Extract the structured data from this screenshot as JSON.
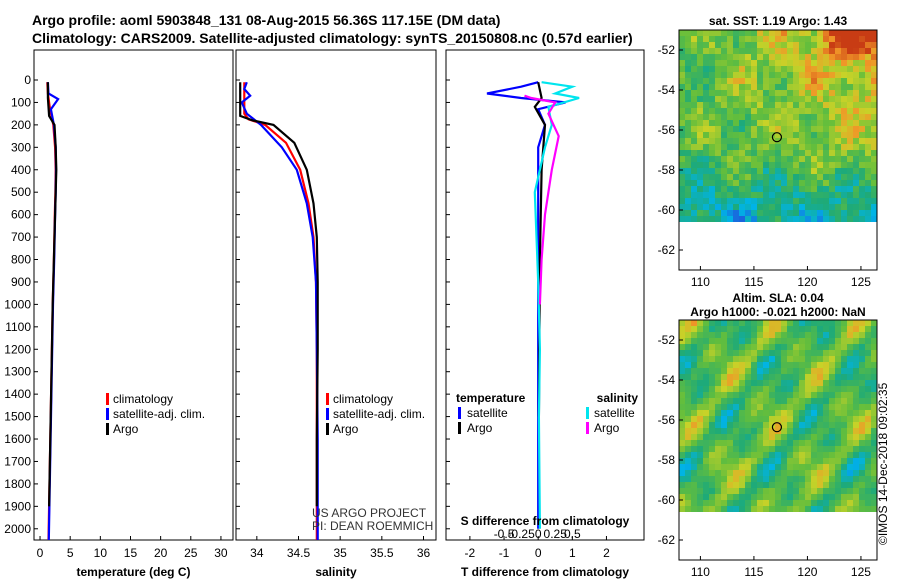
{
  "header": {
    "line1": "Argo profile: aoml 5903848_131 08-Aug-2015 56.36S 117.15E (DM data)",
    "line2": "Climatology: CARS2009. Satellite-adjusted climatology: synTS_20150808.nc (0.57d earlier)"
  },
  "colors": {
    "climatology": "#ff0000",
    "satellite": "#0000ff",
    "argo": "#000000",
    "sal_satellite": "#00e5ee",
    "sal_argo": "#ff00ff"
  },
  "chart_data": [
    {
      "type": "line",
      "name": "temperature",
      "xlabel": "temperature (deg C)",
      "ylabel": "",
      "xlim": [
        -1,
        32
      ],
      "ylim": [
        2050,
        0
      ],
      "xticks": [
        0,
        5,
        10,
        15,
        20,
        25,
        30
      ],
      "yticks": [
        0,
        100,
        200,
        300,
        400,
        500,
        600,
        700,
        800,
        900,
        1000,
        1100,
        1200,
        1300,
        1400,
        1500,
        1600,
        1700,
        1800,
        1900,
        2000
      ],
      "legend": [
        "climatology",
        "satellite-adj. clim.",
        "Argo"
      ],
      "series": [
        {
          "name": "climatology",
          "color": "#ff0000",
          "points": [
            [
              1.2,
              10
            ],
            [
              1.3,
              60
            ],
            [
              1.6,
              120
            ],
            [
              2.2,
              200
            ],
            [
              2.5,
              300
            ],
            [
              2.6,
              400
            ],
            [
              2.55,
              500
            ],
            [
              2.45,
              600
            ],
            [
              2.3,
              800
            ],
            [
              2.1,
              1000
            ],
            [
              1.9,
              1300
            ],
            [
              1.7,
              1600
            ],
            [
              1.5,
              1900
            ],
            [
              1.4,
              2050
            ]
          ]
        },
        {
          "name": "satellite-adj. clim.",
          "color": "#0000ff",
          "points": [
            [
              1.3,
              10
            ],
            [
              1.4,
              60
            ],
            [
              3.0,
              85
            ],
            [
              1.8,
              130
            ],
            [
              2.3,
              200
            ],
            [
              2.6,
              300
            ],
            [
              2.65,
              400
            ],
            [
              2.6,
              500
            ],
            [
              2.5,
              600
            ],
            [
              2.35,
              800
            ],
            [
              2.15,
              1000
            ],
            [
              1.95,
              1300
            ],
            [
              1.75,
              1600
            ],
            [
              1.55,
              1900
            ],
            [
              1.45,
              2050
            ]
          ]
        },
        {
          "name": "Argo",
          "color": "#000000",
          "points": [
            [
              1.3,
              10
            ],
            [
              1.3,
              80
            ],
            [
              1.5,
              160
            ],
            [
              2.4,
              200
            ],
            [
              2.6,
              300
            ],
            [
              2.7,
              400
            ],
            [
              2.6,
              500
            ],
            [
              2.5,
              600
            ],
            [
              2.3,
              800
            ],
            [
              2.1,
              1000
            ],
            [
              1.9,
              1300
            ],
            [
              1.7,
              1600
            ],
            [
              1.5,
              1900
            ]
          ]
        }
      ]
    },
    {
      "type": "line",
      "name": "salinity",
      "xlabel": "salinity",
      "xlim": [
        33.75,
        36.15
      ],
      "ylim": [
        2050,
        0
      ],
      "xticks": [
        34,
        34.5,
        35,
        35.5,
        36
      ],
      "legend": [
        "climatology",
        "satellite-adj. clim.",
        "Argo"
      ],
      "series": [
        {
          "name": "climatology",
          "color": "#ff0000",
          "points": [
            [
              33.85,
              10
            ],
            [
              33.85,
              150
            ],
            [
              33.9,
              175
            ],
            [
              34.1,
              200
            ],
            [
              34.35,
              280
            ],
            [
              34.52,
              400
            ],
            [
              34.62,
              550
            ],
            [
              34.68,
              700
            ],
            [
              34.71,
              900
            ],
            [
              34.72,
              1200
            ],
            [
              34.72,
              1600
            ],
            [
              34.72,
              2050
            ]
          ]
        },
        {
          "name": "satellite-adj. clim.",
          "color": "#0000ff",
          "points": [
            [
              33.88,
              10
            ],
            [
              33.85,
              40
            ],
            [
              33.92,
              70
            ],
            [
              33.82,
              100
            ],
            [
              33.88,
              150
            ],
            [
              34.05,
              200
            ],
            [
              34.3,
              300
            ],
            [
              34.48,
              400
            ],
            [
              34.6,
              550
            ],
            [
              34.67,
              700
            ],
            [
              34.71,
              900
            ],
            [
              34.72,
              1200
            ],
            [
              34.73,
              1600
            ],
            [
              34.73,
              2050
            ]
          ]
        },
        {
          "name": "Argo",
          "color": "#000000",
          "points": [
            [
              33.8,
              10
            ],
            [
              33.8,
              160
            ],
            [
              33.95,
              180
            ],
            [
              34.2,
              200
            ],
            [
              34.45,
              280
            ],
            [
              34.6,
              400
            ],
            [
              34.68,
              550
            ],
            [
              34.72,
              700
            ],
            [
              34.73,
              900
            ],
            [
              34.73,
              1200
            ],
            [
              34.72,
              1600
            ],
            [
              34.72,
              1900
            ]
          ]
        }
      ],
      "annotation": [
        "US ARGO PROJECT",
        "PI: DEAN ROEMMICH"
      ]
    },
    {
      "type": "line",
      "name": "differences",
      "xlabel": "T difference from climatology",
      "xlabel_top": "S difference from climatology",
      "xlim": [
        -2.7,
        3.1
      ],
      "ylim": [
        2050,
        0
      ],
      "xticks": [
        -2,
        -1,
        0,
        1,
        2
      ],
      "xticks_top": [
        -0.5,
        -0.25,
        0,
        0.25,
        0.5
      ],
      "legend_left_title": "temperature",
      "legend_right_title": "salinity",
      "legend": [
        "satellite",
        "Argo"
      ],
      "series": [
        {
          "name": "T satellite",
          "color": "#0000ff",
          "points": [
            [
              0,
              10
            ],
            [
              -0.5,
              30
            ],
            [
              -1.5,
              60
            ],
            [
              -0.5,
              80
            ],
            [
              0.8,
              100
            ],
            [
              0,
              130
            ],
            [
              0.2,
              200
            ],
            [
              0,
              300
            ],
            [
              0,
              1000
            ],
            [
              0,
              1500
            ],
            [
              0,
              2000
            ]
          ]
        },
        {
          "name": "T Argo",
          "color": "#000000",
          "points": [
            [
              0,
              10
            ],
            [
              0.1,
              80
            ],
            [
              -0.1,
              120
            ],
            [
              0.2,
              200
            ],
            [
              0.1,
              400
            ],
            [
              0.05,
              800
            ],
            [
              0.02,
              1500
            ]
          ]
        },
        {
          "name": "S satellite",
          "color": "#00e5ee",
          "points": [
            [
              0.1,
              10
            ],
            [
              1.0,
              30
            ],
            [
              0.5,
              60
            ],
            [
              1.2,
              80
            ],
            [
              0.3,
              120
            ],
            [
              0.4,
              200
            ],
            [
              0.2,
              300
            ],
            [
              -0.1,
              500
            ],
            [
              0,
              900
            ],
            [
              0.05,
              1200
            ],
            [
              0.02,
              1500
            ],
            [
              0.05,
              2000
            ]
          ]
        },
        {
          "name": "S Argo",
          "color": "#ff00ff",
          "points": [
            [
              -0.4,
              70
            ],
            [
              -0.2,
              80
            ],
            [
              0.5,
              100
            ],
            [
              0.3,
              150
            ],
            [
              0.6,
              250
            ],
            [
              0.4,
              400
            ],
            [
              0.2,
              600
            ],
            [
              0.1,
              800
            ],
            [
              0.05,
              1000
            ]
          ]
        }
      ]
    }
  ],
  "maps": [
    {
      "title1": "sat. SST: 1.19 Argo: 1.43",
      "title2": "",
      "xticks": [
        110,
        115,
        120,
        125
      ],
      "yticks": [
        -52,
        -54,
        -56,
        -58,
        -60,
        -62
      ]
    },
    {
      "title1": "Altim. SLA: 0.04",
      "title2": "Argo h1000: -0.021 h2000: NaN",
      "xticks": [
        110,
        115,
        120,
        125
      ],
      "yticks": [
        -52,
        -54,
        -56,
        -58,
        -60,
        -62
      ]
    }
  ],
  "side_label": "©IMOS 14-Dec-2018 09:02:35"
}
